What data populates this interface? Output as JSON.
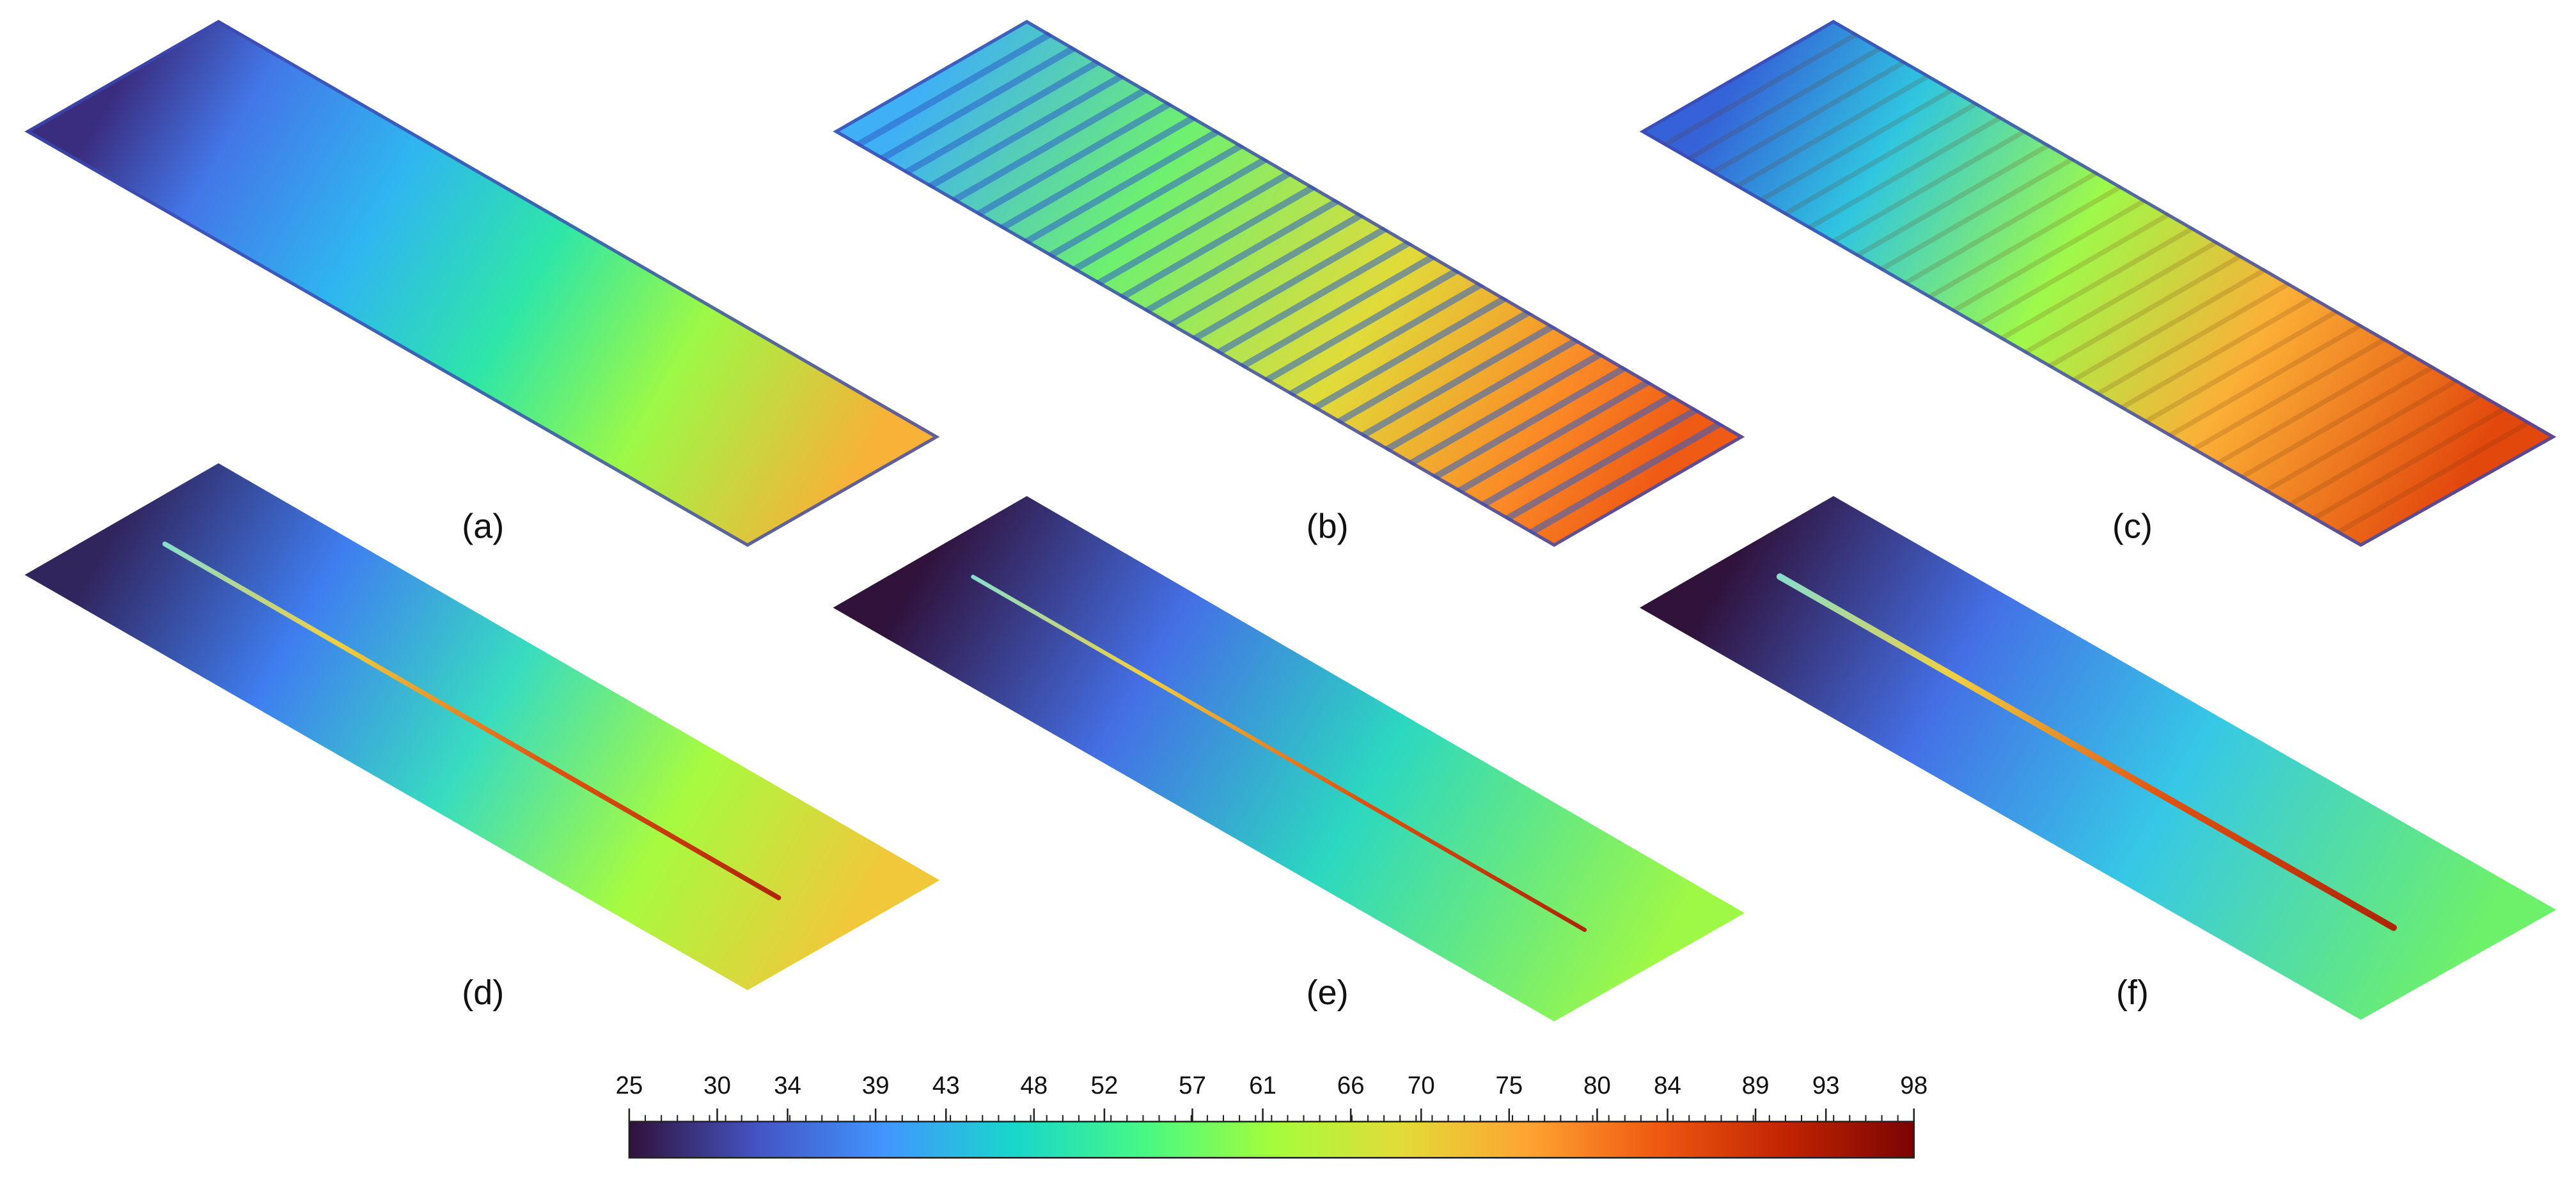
{
  "panels": [
    {
      "label": "(a)"
    },
    {
      "label": "(b)"
    },
    {
      "label": "(c)"
    },
    {
      "label": "(d)"
    },
    {
      "label": "(e)"
    },
    {
      "label": "(f)"
    }
  ],
  "colorbar": {
    "lim": [
      25,
      98
    ],
    "ticks": [
      25,
      30,
      34,
      39,
      43,
      48,
      52,
      57,
      61,
      66,
      70,
      75,
      80,
      84,
      89,
      93,
      98
    ],
    "colormap": [
      "#30123b",
      "#4454c4",
      "#4196ff",
      "#18d7cb",
      "#46f884",
      "#a4fc3c",
      "#e2dc38",
      "#fea331",
      "#ef5911",
      "#c22402",
      "#7a0403"
    ]
  }
}
